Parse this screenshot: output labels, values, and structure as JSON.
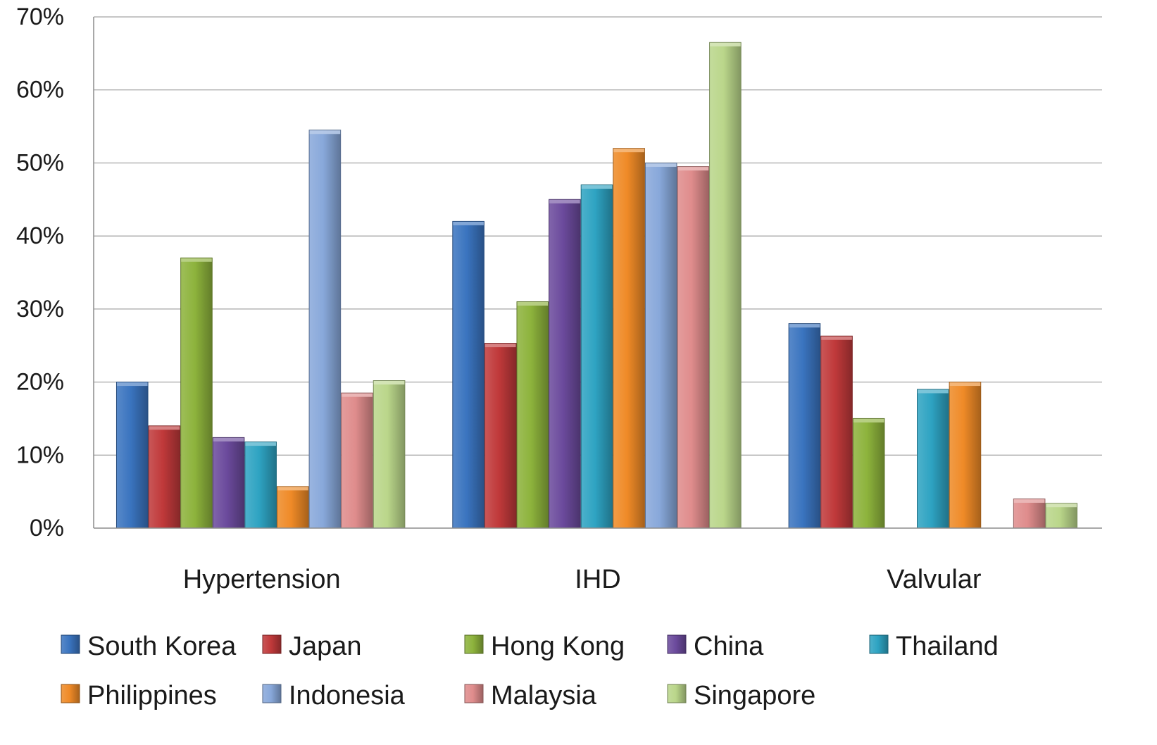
{
  "chart_data": {
    "type": "bar",
    "categories": [
      "Hypertension",
      "IHD",
      "Valvular"
    ],
    "series": [
      {
        "name": "South Korea",
        "color": "#3a74bf",
        "values": [
          20,
          42,
          28
        ]
      },
      {
        "name": "Japan",
        "color": "#c0393a",
        "values": [
          14,
          25.3,
          26.3
        ]
      },
      {
        "name": "Hong Kong",
        "color": "#8db33c",
        "values": [
          37,
          31,
          15
        ]
      },
      {
        "name": "China",
        "color": "#6b4a9c",
        "values": [
          12.4,
          45,
          null
        ]
      },
      {
        "name": "Thailand",
        "color": "#2ea3c2",
        "values": [
          11.8,
          47,
          19
        ]
      },
      {
        "name": "Philippines",
        "color": "#ef8a27",
        "values": [
          5.7,
          52,
          20
        ]
      },
      {
        "name": "Indonesia",
        "color": "#88a8da",
        "values": [
          54.5,
          50,
          null
        ]
      },
      {
        "name": "Malaysia",
        "color": "#df8c8c",
        "values": [
          18.5,
          49.5,
          4
        ]
      },
      {
        "name": "Singapore",
        "color": "#bad68a",
        "values": [
          20.2,
          66.5,
          3.4
        ]
      }
    ],
    "ylim": [
      0,
      70
    ],
    "ytick_step": 10,
    "ytick_labels": [
      "0%",
      "10%",
      "20%",
      "30%",
      "40%",
      "50%",
      "60%",
      "70%"
    ],
    "grid": true,
    "legend_position": "bottom",
    "title": "",
    "xlabel": "",
    "ylabel": ""
  }
}
